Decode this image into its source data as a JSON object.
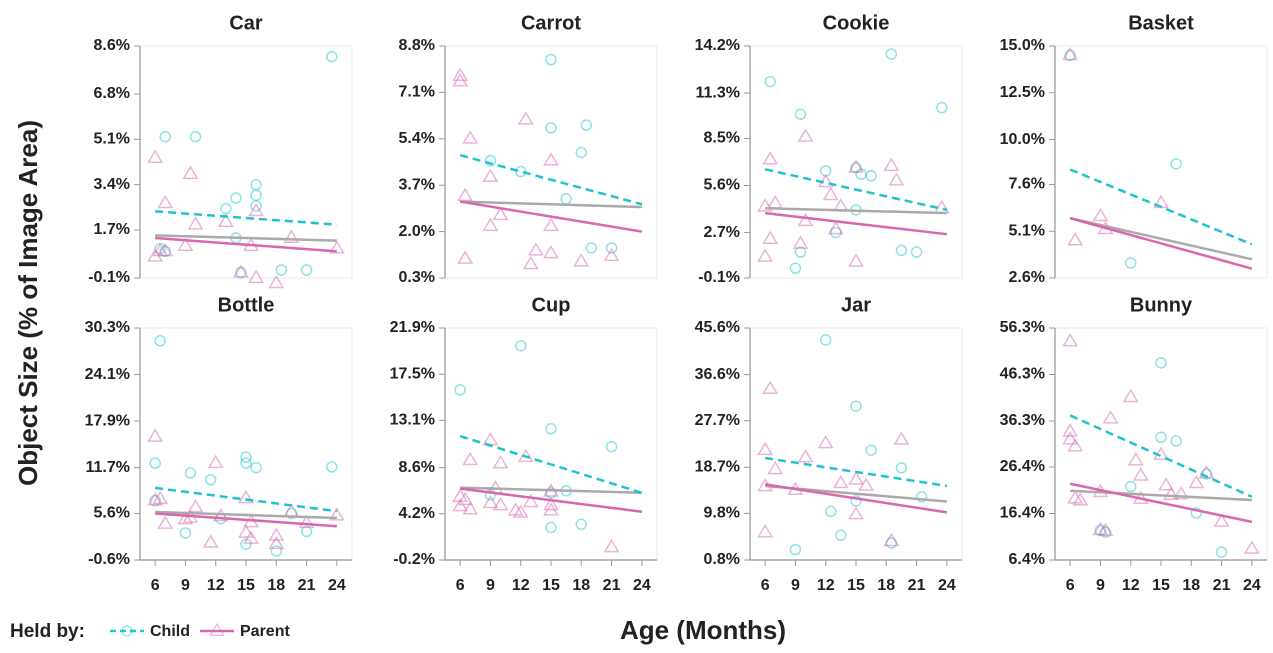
{
  "ylabel": "Object Size (% of Image Area)",
  "xlabel": "Age (Months)",
  "legend": {
    "title": "Held by:",
    "entries": [
      {
        "name": "Child",
        "color": "#1fc3cf"
      },
      {
        "name": "Parent",
        "color": "#d966b0"
      }
    ]
  },
  "chart_data": [
    {
      "type": "scatter",
      "title": "Car",
      "xlim": [
        4.5,
        25.5
      ],
      "ylim": [
        -0.1,
        8.6
      ],
      "yticks": [
        {
          "value": -0.1,
          "label": "-0.1%"
        },
        {
          "value": 1.7,
          "label": "1.7%"
        },
        {
          "value": 3.4,
          "label": "3.4%"
        },
        {
          "value": 5.1,
          "label": "5.1%"
        },
        {
          "value": 6.8,
          "label": "6.8%"
        },
        {
          "value": 8.6,
          "label": "8.6%"
        }
      ],
      "series": [
        {
          "x": [
            23.5,
            7,
            10,
            16,
            16,
            14,
            13,
            16,
            6.5,
            7,
            14,
            14.5,
            18.5,
            21
          ],
          "values": [
            8.2,
            5.2,
            5.2,
            3.4,
            3.0,
            2.9,
            2.5,
            2.6,
            1.0,
            0.9,
            1.4,
            0.1,
            0.2,
            0.2
          ],
          "trend": {
            "x": [
              6,
              24
            ],
            "values": [
              2.4,
              1.9
            ]
          }
        },
        {
          "x": [
            6,
            7,
            9.5,
            10,
            9,
            13,
            16,
            15.5,
            14.5,
            16,
            18,
            19.5,
            24,
            6,
            7,
            6.5
          ],
          "values": [
            4.4,
            2.7,
            3.8,
            1.9,
            1.1,
            2.0,
            2.4,
            1.1,
            0.1,
            -0.1,
            -0.3,
            1.4,
            1.0,
            0.7,
            0.9,
            0.9
          ],
          "trend": {
            "x": [
              6,
              24
            ],
            "values": [
              1.4,
              0.9
            ]
          }
        }
      ],
      "overall_trend": {
        "x": [
          6,
          24
        ],
        "values": [
          1.5,
          1.3
        ],
        "color": "#aaaaaa"
      }
    },
    {
      "type": "scatter",
      "title": "Carrot",
      "xlim": [
        4.5,
        25.5
      ],
      "ylim": [
        0.3,
        8.8
      ],
      "yticks": [
        {
          "value": 0.3,
          "label": "0.3%"
        },
        {
          "value": 2.0,
          "label": "2.0%"
        },
        {
          "value": 3.7,
          "label": "3.7%"
        },
        {
          "value": 5.4,
          "label": "5.4%"
        },
        {
          "value": 7.1,
          "label": "7.1%"
        },
        {
          "value": 8.8,
          "label": "8.8%"
        }
      ],
      "series": [
        {
          "x": [
            15,
            15,
            18.5,
            18,
            9,
            12,
            16.5,
            19,
            21
          ],
          "values": [
            8.3,
            5.8,
            5.9,
            4.9,
            4.6,
            4.2,
            3.2,
            1.4,
            1.4
          ],
          "trend": {
            "x": [
              6,
              24
            ],
            "values": [
              4.8,
              3.0
            ]
          }
        },
        {
          "x": [
            6,
            6,
            7,
            12.5,
            15,
            9,
            6.5,
            10,
            9,
            15,
            13.5,
            15,
            13,
            18,
            21,
            6.5
          ],
          "values": [
            7.7,
            7.5,
            5.4,
            6.1,
            4.6,
            4.0,
            3.3,
            2.6,
            2.2,
            2.2,
            1.3,
            1.2,
            0.8,
            0.9,
            1.1,
            1.0
          ],
          "trend": {
            "x": [
              6,
              24
            ],
            "values": [
              3.1,
              2.0
            ]
          }
        }
      ],
      "overall_trend": {
        "x": [
          6,
          24
        ],
        "values": [
          3.1,
          2.9
        ],
        "color": "#aaaaaa"
      }
    },
    {
      "type": "scatter",
      "title": "Cookie",
      "xlim": [
        4.5,
        25.5
      ],
      "ylim": [
        -0.1,
        14.2
      ],
      "yticks": [
        {
          "value": -0.1,
          "label": "-0.1%"
        },
        {
          "value": 2.7,
          "label": "2.7%"
        },
        {
          "value": 5.6,
          "label": "5.6%"
        },
        {
          "value": 8.5,
          "label": "8.5%"
        },
        {
          "value": 11.3,
          "label": "11.3%"
        },
        {
          "value": 14.2,
          "label": "14.2%"
        }
      ],
      "series": [
        {
          "x": [
            18.5,
            6.5,
            9.5,
            23.5,
            12,
            15,
            15.5,
            16.5,
            15,
            13,
            9.5,
            9,
            19.5,
            21
          ],
          "values": [
            13.7,
            12.0,
            10.0,
            10.4,
            6.5,
            6.7,
            6.3,
            6.2,
            4.1,
            2.7,
            1.5,
            0.5,
            1.6,
            1.5
          ],
          "trend": {
            "x": [
              6,
              24
            ],
            "values": [
              6.6,
              4.1
            ]
          }
        },
        {
          "x": [
            10,
            6.5,
            15,
            18.5,
            19,
            12,
            12.5,
            7,
            6,
            13.5,
            10,
            13,
            9.5,
            6.5,
            6,
            15,
            23.5
          ],
          "values": [
            8.6,
            7.2,
            6.7,
            6.8,
            5.9,
            5.8,
            5.0,
            4.5,
            4.3,
            4.3,
            3.4,
            2.9,
            2.0,
            2.3,
            1.2,
            0.9,
            4.2
          ],
          "trend": {
            "x": [
              6,
              24
            ],
            "values": [
              3.9,
              2.6
            ]
          }
        }
      ],
      "overall_trend": {
        "x": [
          6,
          24
        ],
        "values": [
          4.2,
          3.9
        ],
        "color": "#aaaaaa"
      }
    },
    {
      "type": "scatter",
      "title": "Basket",
      "xlim": [
        4.5,
        25.5
      ],
      "ylim": [
        2.6,
        15.0
      ],
      "yticks": [
        {
          "value": 2.6,
          "label": "2.6%"
        },
        {
          "value": 5.1,
          "label": "5.1%"
        },
        {
          "value": 7.6,
          "label": "7.6%"
        },
        {
          "value": 10.0,
          "label": "10.0%"
        },
        {
          "value": 12.5,
          "label": "12.5%"
        },
        {
          "value": 15.0,
          "label": "15.0%"
        }
      ],
      "series": [
        {
          "x": [
            6,
            16.5,
            12
          ],
          "values": [
            14.5,
            8.7,
            3.4
          ],
          "trend": {
            "x": [
              6,
              24
            ],
            "values": [
              8.4,
              4.4
            ]
          }
        },
        {
          "x": [
            6,
            15,
            9,
            9.5,
            6.5
          ],
          "values": [
            14.5,
            6.6,
            5.9,
            5.2,
            4.6
          ],
          "trend": {
            "x": [
              6,
              24
            ],
            "values": [
              5.8,
              3.1
            ]
          }
        }
      ],
      "overall_trend": {
        "x": [
          6,
          24
        ],
        "values": [
          5.8,
          3.6
        ],
        "color": "#aaaaaa"
      }
    },
    {
      "type": "scatter",
      "title": "Bottle",
      "xlim": [
        4.5,
        25.5
      ],
      "ylim": [
        -0.6,
        30.3
      ],
      "xticks": [
        6,
        9,
        12,
        15,
        18,
        21,
        24
      ],
      "yticks": [
        {
          "value": -0.6,
          "label": "-0.6%"
        },
        {
          "value": 5.6,
          "label": "5.6%"
        },
        {
          "value": 11.7,
          "label": "11.7%"
        },
        {
          "value": 17.9,
          "label": "17.9%"
        },
        {
          "value": 24.1,
          "label": "24.1%"
        },
        {
          "value": 30.3,
          "label": "30.3%"
        }
      ],
      "series": [
        {
          "x": [
            6.5,
            6,
            9.5,
            15,
            15,
            16,
            11.5,
            23.5,
            12.5,
            9,
            15,
            18,
            21,
            19.5,
            6
          ],
          "values": [
            28.6,
            12.3,
            11.0,
            12.3,
            13.1,
            11.7,
            10.1,
            11.8,
            4.9,
            3.0,
            1.5,
            0.6,
            3.2,
            5.6,
            7.3
          ],
          "trend": {
            "x": [
              6,
              24
            ],
            "values": [
              9.0,
              5.9
            ]
          }
        },
        {
          "x": [
            6,
            12,
            15,
            6,
            6.5,
            7,
            9,
            9.5,
            10,
            12.5,
            15.5,
            15,
            15.5,
            18,
            18,
            19.5,
            21,
            24,
            11.5
          ],
          "values": [
            15.8,
            12.3,
            7.6,
            7.3,
            7.5,
            4.2,
            4.8,
            5.0,
            6.4,
            5.2,
            4.4,
            3.0,
            2.2,
            2.6,
            1.5,
            5.8,
            4.3,
            5.3,
            1.7
          ],
          "trend": {
            "x": [
              6,
              24
            ],
            "values": [
              5.6,
              3.9
            ]
          }
        }
      ],
      "overall_trend": {
        "x": [
          6,
          24
        ],
        "values": [
          5.8,
          5.0
        ],
        "color": "#aaaaaa"
      }
    },
    {
      "type": "scatter",
      "title": "Cup",
      "xlim": [
        4.5,
        25.5
      ],
      "ylim": [
        -0.2,
        21.9
      ],
      "xticks": [
        6,
        9,
        12,
        15,
        18,
        21,
        24
      ],
      "yticks": [
        {
          "value": -0.2,
          "label": "-0.2%"
        },
        {
          "value": 4.2,
          "label": "4.2%"
        },
        {
          "value": 8.6,
          "label": "8.6%"
        },
        {
          "value": 13.1,
          "label": "13.1%"
        },
        {
          "value": 17.5,
          "label": "17.5%"
        },
        {
          "value": 21.9,
          "label": "21.9%"
        }
      ],
      "series": [
        {
          "x": [
            12,
            6,
            21,
            15,
            9,
            15,
            16.5,
            15,
            18
          ],
          "values": [
            20.2,
            16.0,
            10.6,
            12.3,
            6.0,
            6.2,
            6.4,
            2.9,
            3.2
          ],
          "trend": {
            "x": [
              6,
              24
            ],
            "values": [
              11.6,
              6.2
            ]
          }
        },
        {
          "x": [
            9,
            12.5,
            7,
            10,
            6,
            6.5,
            6,
            7,
            9,
            9.5,
            10,
            11.5,
            12,
            13,
            15,
            15,
            15,
            21
          ],
          "values": [
            11.2,
            9.6,
            9.3,
            9.0,
            5.8,
            5.5,
            4.9,
            4.6,
            5.2,
            6.6,
            5.0,
            4.5,
            4.3,
            5.3,
            4.5,
            6.3,
            5.0,
            1.0
          ],
          "trend": {
            "x": [
              6,
              24
            ],
            "values": [
              6.6,
              4.4
            ]
          }
        }
      ],
      "overall_trend": {
        "x": [
          6,
          24
        ],
        "values": [
          6.7,
          6.2
        ],
        "color": "#aaaaaa"
      }
    },
    {
      "type": "scatter",
      "title": "Jar",
      "xlim": [
        4.5,
        25.5
      ],
      "ylim": [
        0.8,
        45.6
      ],
      "xticks": [
        6,
        9,
        12,
        15,
        18,
        21,
        24
      ],
      "yticks": [
        {
          "value": 0.8,
          "label": "0.8%"
        },
        {
          "value": 9.8,
          "label": "9.8%"
        },
        {
          "value": 18.7,
          "label": "18.7%"
        },
        {
          "value": 27.7,
          "label": "27.7%"
        },
        {
          "value": 36.6,
          "label": "36.6%"
        },
        {
          "value": 45.6,
          "label": "45.6%"
        }
      ],
      "series": [
        {
          "x": [
            12,
            15,
            16.5,
            19.5,
            15,
            12.5,
            13.5,
            9,
            18.5,
            21.5
          ],
          "values": [
            43.3,
            30.5,
            22.0,
            18.6,
            12.2,
            10.2,
            5.6,
            2.8,
            4.1,
            13.0
          ],
          "trend": {
            "x": [
              6,
              24
            ],
            "values": [
              20.5,
              15.1
            ]
          }
        },
        {
          "x": [
            6.5,
            6,
            12,
            19.5,
            7,
            10,
            15,
            16,
            13.5,
            6,
            9,
            15,
            18.5,
            6
          ],
          "values": [
            33.8,
            22.0,
            23.3,
            24.0,
            18.3,
            20.6,
            16.3,
            15.1,
            15.6,
            15.0,
            14.3,
            9.6,
            4.4,
            6.1
          ],
          "trend": {
            "x": [
              6,
              24
            ],
            "values": [
              15.4,
              10.0
            ]
          }
        }
      ],
      "overall_trend": {
        "x": [
          6,
          24
        ],
        "values": [
          15.1,
          12.1
        ],
        "color": "#aaaaaa"
      }
    },
    {
      "type": "scatter",
      "title": "Bunny",
      "xlim": [
        4.5,
        25.5
      ],
      "ylim": [
        6.4,
        56.3
      ],
      "xticks": [
        6,
        9,
        12,
        15,
        18,
        21,
        24
      ],
      "yticks": [
        {
          "value": 6.4,
          "label": "6.4%"
        },
        {
          "value": 16.4,
          "label": "16.4%"
        },
        {
          "value": 26.4,
          "label": "26.4%"
        },
        {
          "value": 36.3,
          "label": "36.3%"
        },
        {
          "value": 46.3,
          "label": "46.3%"
        },
        {
          "value": 56.3,
          "label": "56.3%"
        }
      ],
      "series": [
        {
          "x": [
            15,
            15,
            16.5,
            12,
            19.5,
            18.5,
            9,
            9.5,
            21
          ],
          "values": [
            48.8,
            32.8,
            32.0,
            22.2,
            24.9,
            16.5,
            12.8,
            12.4,
            8.1
          ],
          "trend": {
            "x": [
              6,
              24
            ],
            "values": [
              37.5,
              20.0
            ]
          }
        },
        {
          "x": [
            6,
            6,
            6,
            6.5,
            12,
            10,
            12.5,
            13,
            15,
            15.5,
            16,
            17,
            18.5,
            19.5,
            13,
            9,
            6.5,
            7,
            9,
            9.5,
            21,
            24
          ],
          "values": [
            53.4,
            34.0,
            32.3,
            30.8,
            41.4,
            36.8,
            27.8,
            24.5,
            29.0,
            22.4,
            20.4,
            20.5,
            22.9,
            25.0,
            19.5,
            21.0,
            19.6,
            19.2,
            12.8,
            12.6,
            14.6,
            8.8
          ],
          "trend": {
            "x": [
              6,
              24
            ],
            "values": [
              22.8,
              14.6
            ]
          }
        }
      ],
      "overall_trend": {
        "x": [
          6,
          24
        ],
        "values": [
          21.3,
          19.3
        ],
        "color": "#aaaaaa"
      }
    }
  ]
}
